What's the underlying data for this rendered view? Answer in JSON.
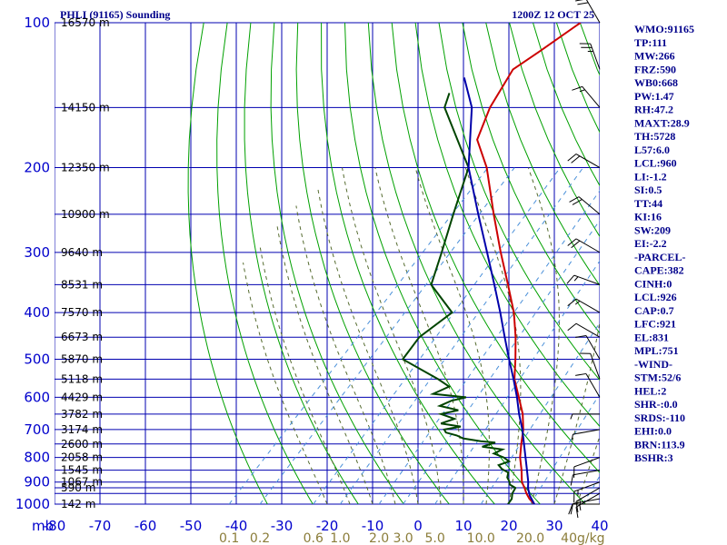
{
  "header": {
    "title": "PHLI (91165) Sounding",
    "time": "1200Z 12 OCT 25"
  },
  "chart_data": {
    "type": "line",
    "subtype": "skew-t log-p sounding",
    "pressure_unit_label": "mb",
    "pressure_ticks": [
      100,
      200,
      300,
      400,
      500,
      600,
      700,
      800,
      900,
      1000
    ],
    "pressure_lines": [
      100,
      150,
      200,
      250,
      300,
      350,
      400,
      450,
      500,
      550,
      600,
      650,
      700,
      750,
      800,
      850,
      900,
      925,
      950,
      1000
    ],
    "temp_ticks": [
      -80,
      -70,
      -60,
      -50,
      -40,
      -30,
      -20,
      -10,
      0,
      10,
      20,
      30,
      40
    ],
    "temp_tick_labels": [
      "-80",
      "-70",
      "-60",
      "-50",
      "-40",
      "-30",
      "-20",
      "-10",
      "0",
      "10",
      "20",
      "30",
      "40"
    ],
    "ylim": [
      1000,
      100
    ],
    "xlim": [
      -80,
      40
    ],
    "grid": true,
    "mixing_ratio_labels": [
      {
        "value": 0.1,
        "text": "0.1"
      },
      {
        "value": 0.2,
        "text": "0.2"
      },
      {
        "value": 0.6,
        "text": "0.6"
      },
      {
        "value": 1.0,
        "text": "1.0"
      },
      {
        "value": 2.0,
        "text": "2.0"
      },
      {
        "value": 3.0,
        "text": "3.0"
      },
      {
        "value": 5.0,
        "text": "5.0"
      },
      {
        "value": 10.0,
        "text": "10.0"
      },
      {
        "value": 20.0,
        "text": "20.0"
      },
      {
        "value": 40.0,
        "text": "40g/kg"
      }
    ],
    "heights": [
      {
        "p": 100,
        "text": "16570 m"
      },
      {
        "p": 150,
        "text": "14150 m"
      },
      {
        "p": 200,
        "text": "12350 m"
      },
      {
        "p": 250,
        "text": "10900 m"
      },
      {
        "p": 300,
        "text": "9640 m"
      },
      {
        "p": 350,
        "text": "8531 m"
      },
      {
        "p": 400,
        "text": "7570 m"
      },
      {
        "p": 450,
        "text": "6673 m"
      },
      {
        "p": 500,
        "text": "5870 m"
      },
      {
        "p": 550,
        "text": "5118 m"
      },
      {
        "p": 600,
        "text": "4429 m"
      },
      {
        "p": 650,
        "text": "3782 m"
      },
      {
        "p": 700,
        "text": "3174 m"
      },
      {
        "p": 750,
        "text": "2600 m"
      },
      {
        "p": 800,
        "text": "2058 m"
      },
      {
        "p": 850,
        "text": "1545 m"
      },
      {
        "p": 900,
        "text": "1067 m"
      },
      {
        "p": 925,
        "text": "590 m"
      },
      {
        "p": 1000,
        "text": "142 m"
      }
    ],
    "series": [
      {
        "name": "Temperature",
        "color": "#cc0000",
        "points": [
          [
            1000,
            25.6
          ],
          [
            975,
            23.4
          ],
          [
            950,
            21.6
          ],
          [
            925,
            20.0
          ],
          [
            900,
            18.2
          ],
          [
            850,
            15.6
          ],
          [
            800,
            12.6
          ],
          [
            750,
            10.0
          ],
          [
            700,
            7.4
          ],
          [
            650,
            4.0
          ],
          [
            600,
            -0.4
          ],
          [
            550,
            -5.2
          ],
          [
            500,
            -9.2
          ],
          [
            450,
            -13.8
          ],
          [
            400,
            -19.4
          ],
          [
            350,
            -26.6
          ],
          [
            300,
            -35.0
          ],
          [
            250,
            -44.6
          ],
          [
            200,
            -56.0
          ],
          [
            175,
            -64.0
          ],
          [
            150,
            -68.0
          ],
          [
            125,
            -71.0
          ],
          [
            115,
            -69.0
          ],
          [
            100,
            -66.0
          ]
        ]
      },
      {
        "name": "Dewpoint",
        "color": "#004400",
        "points": [
          [
            1000,
            19.8
          ],
          [
            975,
            19.5
          ],
          [
            950,
            18.5
          ],
          [
            925,
            18.0
          ],
          [
            910,
            16.0
          ],
          [
            900,
            15.5
          ],
          [
            880,
            14.0
          ],
          [
            860,
            13.2
          ],
          [
            845,
            11.0
          ],
          [
            830,
            9.5
          ],
          [
            815,
            11.0
          ],
          [
            800,
            9.0
          ],
          [
            785,
            6.0
          ],
          [
            770,
            7.0
          ],
          [
            760,
            2.0
          ],
          [
            745,
            4.0
          ],
          [
            740,
            0.5
          ],
          [
            730,
            -4.0
          ],
          [
            720,
            -6.0
          ],
          [
            710,
            -9.0
          ],
          [
            700,
            -10.0
          ],
          [
            690,
            -7.0
          ],
          [
            680,
            -12.0
          ],
          [
            665,
            -10.0
          ],
          [
            650,
            -14.0
          ],
          [
            638,
            -11.0
          ],
          [
            625,
            -16.0
          ],
          [
            610,
            -14.5
          ],
          [
            600,
            -12.0
          ],
          [
            590,
            -20.0
          ],
          [
            570,
            -18.0
          ],
          [
            550,
            -22.0
          ],
          [
            500,
            -34.0
          ],
          [
            450,
            -35.0
          ],
          [
            400,
            -33.0
          ],
          [
            350,
            -43.5
          ],
          [
            300,
            -48.0
          ],
          [
            250,
            -53.5
          ],
          [
            200,
            -60.0
          ],
          [
            150,
            -78.0
          ],
          [
            140,
            -80.0
          ]
        ]
      },
      {
        "name": "Parcel",
        "color": "#0000aa",
        "points": [
          [
            1000,
            25.6
          ],
          [
            960,
            22.8
          ],
          [
            926,
            20.8
          ],
          [
            900,
            19.6
          ],
          [
            850,
            16.8
          ],
          [
            800,
            13.8
          ],
          [
            750,
            10.6
          ],
          [
            700,
            7.2
          ],
          [
            650,
            3.2
          ],
          [
            600,
            -0.8
          ],
          [
            550,
            -5.4
          ],
          [
            500,
            -10.6
          ],
          [
            450,
            -16.2
          ],
          [
            400,
            -22.4
          ],
          [
            350,
            -29.6
          ],
          [
            300,
            -38.0
          ],
          [
            250,
            -48.0
          ],
          [
            200,
            -60.0
          ],
          [
            150,
            -72.0
          ],
          [
            130,
            -80.0
          ]
        ]
      }
    ],
    "wind_barbs": [
      {
        "p": 1000,
        "dir": 90,
        "spd": 10
      },
      {
        "p": 975,
        "dir": 100,
        "spd": 10
      },
      {
        "p": 950,
        "dir": 120,
        "spd": 15
      },
      {
        "p": 925,
        "dir": 120,
        "spd": 15
      },
      {
        "p": 900,
        "dir": 110,
        "spd": 15
      },
      {
        "p": 850,
        "dir": 100,
        "spd": 10
      },
      {
        "p": 800,
        "dir": 110,
        "spd": 10
      },
      {
        "p": 700,
        "dir": 100,
        "spd": 5
      },
      {
        "p": 650,
        "dir": 90,
        "spd": 5
      },
      {
        "p": 600,
        "dir": 30,
        "spd": 10
      },
      {
        "p": 550,
        "dir": 20,
        "spd": 10
      },
      {
        "p": 500,
        "dir": 30,
        "spd": 10
      },
      {
        "p": 450,
        "dir": 60,
        "spd": 10
      },
      {
        "p": 400,
        "dir": 60,
        "spd": 15
      },
      {
        "p": 350,
        "dir": 70,
        "spd": 15
      },
      {
        "p": 300,
        "dir": 60,
        "spd": 20
      },
      {
        "p": 250,
        "dir": 50,
        "spd": 20
      },
      {
        "p": 200,
        "dir": 60,
        "spd": 20
      },
      {
        "p": 150,
        "dir": 40,
        "spd": 15
      },
      {
        "p": 125,
        "dir": 20,
        "spd": 25
      },
      {
        "p": 100,
        "dir": 30,
        "spd": 20
      }
    ]
  },
  "indices": [
    "WMO:91165",
    "TP:111",
    "MW:266",
    "FRZ:590",
    "WB0:668",
    "PW:1.47",
    "RH:47.2",
    "MAXT:28.9",
    "TH:5728",
    "L57:6.0",
    "LCL:960",
    "LI:-1.2",
    "SI:0.5",
    "TT:44",
    "KI:16",
    "SW:209",
    "EI:-2.2",
    "-PARCEL-",
    "CAPE:382",
    "CINH:0",
    "LCL:926",
    "CAP:0.7",
    "LFC:921",
    "EL:831",
    "MPL:751",
    "-WIND-",
    "STM:52/6",
    "HEL:2",
    "SHR-:0.0",
    "SRDS:-110",
    "EHI:0.0",
    "BRN:113.9",
    "BSHR:3"
  ],
  "colors": {
    "isobar": "#0000b0",
    "isotherm": "#0000b0",
    "dry_adiabat": "#00a000",
    "moist_adiabat": "#556b2f",
    "mixing_ratio": "#4a90d9",
    "text": "#00008b"
  }
}
